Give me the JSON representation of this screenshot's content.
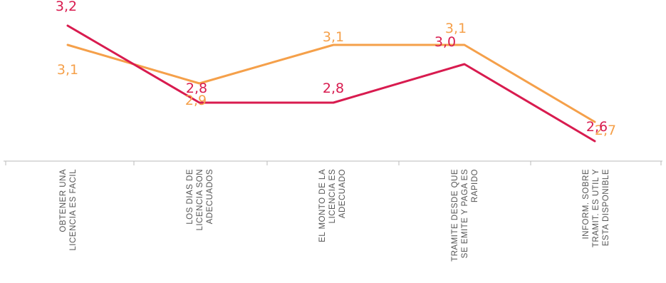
{
  "chart_data": {
    "type": "line",
    "categories": [
      "OBTENER UNA LICENCIA ES FACIL",
      "LOS DIAS DE LICENCIA SON ADECUADOS",
      "EL MONTO DE LA LICENCIA ES ADECUADO",
      "TRAMITE DESDE QUE SE EMITE Y PAGA ES RAPIDO",
      "INFORM. SOBRE TRAMIT. ES UTIL Y ESTA DISPONIBLE"
    ],
    "category_lines": [
      [
        "OBTENER UNA",
        "LICENCIA ES FACIL"
      ],
      [
        "LOS DIAS DE",
        "LICENCIA SON",
        "ADECUADOS"
      ],
      [
        "EL MONTO DE LA",
        "LICENCIA ES",
        "ADECUADO"
      ],
      [
        "TRAMITE DESDE QUE",
        "SE EMITE Y PAGA ES",
        "RAPIDO"
      ],
      [
        "INFORM. SOBRE",
        "TRAMIT. ES UTIL Y",
        "ESTA DISPONIBLE"
      ]
    ],
    "series": [
      {
        "values": [
          3.1,
          2.9,
          3.1,
          3.1,
          2.7
        ],
        "labels": [
          "3,1",
          "2,9",
          "3,1",
          "3,1",
          "2,7"
        ],
        "color": "#F5A04A"
      },
      {
        "values": [
          3.2,
          2.8,
          2.8,
          3.0,
          2.6
        ],
        "labels": [
          "3,2",
          "2,8",
          "2,8",
          "3,0",
          "2,6"
        ],
        "color": "#D81B4F"
      }
    ],
    "grid": false,
    "axis_color": "#BBBBBB"
  }
}
